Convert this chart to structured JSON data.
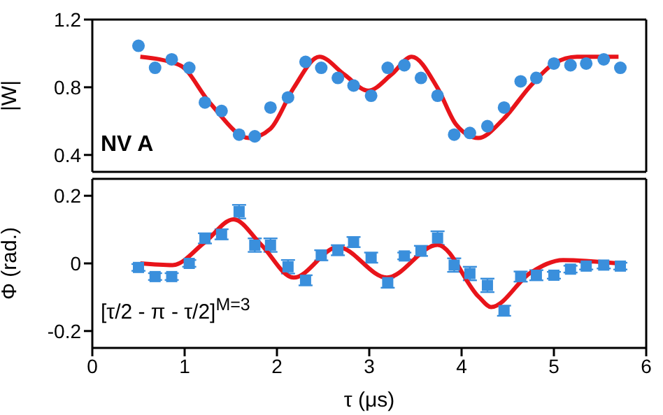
{
  "chart_data": [
    {
      "type": "scatter",
      "ylabel": "|W|",
      "xlim": [
        0,
        6
      ],
      "xticks": [
        0,
        1,
        2,
        3,
        4,
        5,
        6
      ],
      "ylim": [
        0.3,
        1.2
      ],
      "yticks": [
        0.4,
        0.8,
        1.2
      ],
      "tick_labels": "y",
      "grid": false,
      "legend": false,
      "annotations": [
        "NV A"
      ],
      "x": [
        0.5,
        0.68,
        0.86,
        1.05,
        1.22,
        1.4,
        1.59,
        1.76,
        1.93,
        2.12,
        2.31,
        2.48,
        2.66,
        2.83,
        3.02,
        3.2,
        3.38,
        3.56,
        3.74,
        3.92,
        4.09,
        4.28,
        4.46,
        4.64,
        4.81,
        5.0,
        5.18,
        5.35,
        5.54,
        5.72
      ],
      "series": [
        {
          "color": "#3a8fdc",
          "marker": "circle",
          "values": [
            1.045,
            0.915,
            0.965,
            0.915,
            0.71,
            0.66,
            0.52,
            0.51,
            0.68,
            0.74,
            0.95,
            0.915,
            0.855,
            0.81,
            0.75,
            0.915,
            0.93,
            0.855,
            0.75,
            0.52,
            0.53,
            0.57,
            0.68,
            0.835,
            0.855,
            0.94,
            0.93,
            0.94,
            0.965,
            0.915
          ]
        },
        {
          "type": "line",
          "color": "#e8141a",
          "marker": "none",
          "line_style": "solid",
          "x": [
            0.52,
            0.95,
            1.27,
            1.7,
            1.93,
            2.18,
            2.46,
            2.73,
            2.99,
            3.24,
            3.46,
            3.74,
            3.94,
            4.18,
            4.45,
            4.75,
            5.0,
            5.25,
            5.7
          ],
          "values": [
            0.98,
            0.93,
            0.71,
            0.5,
            0.555,
            0.795,
            0.98,
            0.875,
            0.78,
            0.875,
            0.98,
            0.795,
            0.58,
            0.5,
            0.61,
            0.81,
            0.94,
            0.98,
            0.98
          ]
        }
      ]
    },
    {
      "type": "scatter",
      "xlabel": "τ (μs)",
      "ylabel": "Φ (rad.)",
      "xlim": [
        0,
        6
      ],
      "xticks": [
        0,
        1,
        2,
        3,
        4,
        5,
        6
      ],
      "ylim": [
        -0.25,
        0.25
      ],
      "yticks": [
        -0.2,
        0,
        0.2
      ],
      "grid": false,
      "legend": false,
      "annotations": [
        "[τ/2 - π - τ/2]$^{M=3}$"
      ],
      "x": [
        0.5,
        0.68,
        0.86,
        1.05,
        1.22,
        1.4,
        1.59,
        1.76,
        1.93,
        2.12,
        2.31,
        2.48,
        2.66,
        2.83,
        3.02,
        3.2,
        3.38,
        3.56,
        3.74,
        3.92,
        4.09,
        4.28,
        4.46,
        4.64,
        4.81,
        5.0,
        5.18,
        5.35,
        5.54,
        5.72
      ],
      "series": [
        {
          "color": "#3a8fdc",
          "marker": "square",
          "values": [
            -0.012,
            -0.039,
            -0.039,
            0,
            0.074,
            0.086,
            0.153,
            0.054,
            0.054,
            -0.01,
            -0.05,
            0.024,
            0.039,
            0.063,
            0.017,
            -0.057,
            0.022,
            0.037,
            0.075,
            -0.005,
            -0.03,
            -0.065,
            -0.14,
            -0.039,
            -0.035,
            -0.035,
            -0.017,
            -0.008,
            -0.005,
            -0.008
          ],
          "errors": [
            0.01,
            0.01,
            0.01,
            0.01,
            0.015,
            0.015,
            0.02,
            0.02,
            0.02,
            0.02,
            0.015,
            0.015,
            0.015,
            0.015,
            0.015,
            0.015,
            0.01,
            0.015,
            0.02,
            0.02,
            0.02,
            0.02,
            0.015,
            0.015,
            0.015,
            0.01,
            0.01,
            0.01,
            0.01,
            0.01
          ]
        },
        {
          "type": "line",
          "color": "#e8141a",
          "marker": "none",
          "line_style": "solid",
          "x": [
            0.52,
            0.87,
            1.22,
            1.53,
            1.83,
            2.18,
            2.66,
            3.19,
            3.74,
            4.19,
            4.32,
            4.75,
            5.1,
            5.7
          ],
          "values": [
            0,
            -0.005,
            0.063,
            0.13,
            0.055,
            -0.042,
            0.048,
            -0.042,
            0.055,
            -0.1,
            -0.129,
            -0.027,
            0.01,
            0
          ]
        }
      ]
    }
  ]
}
